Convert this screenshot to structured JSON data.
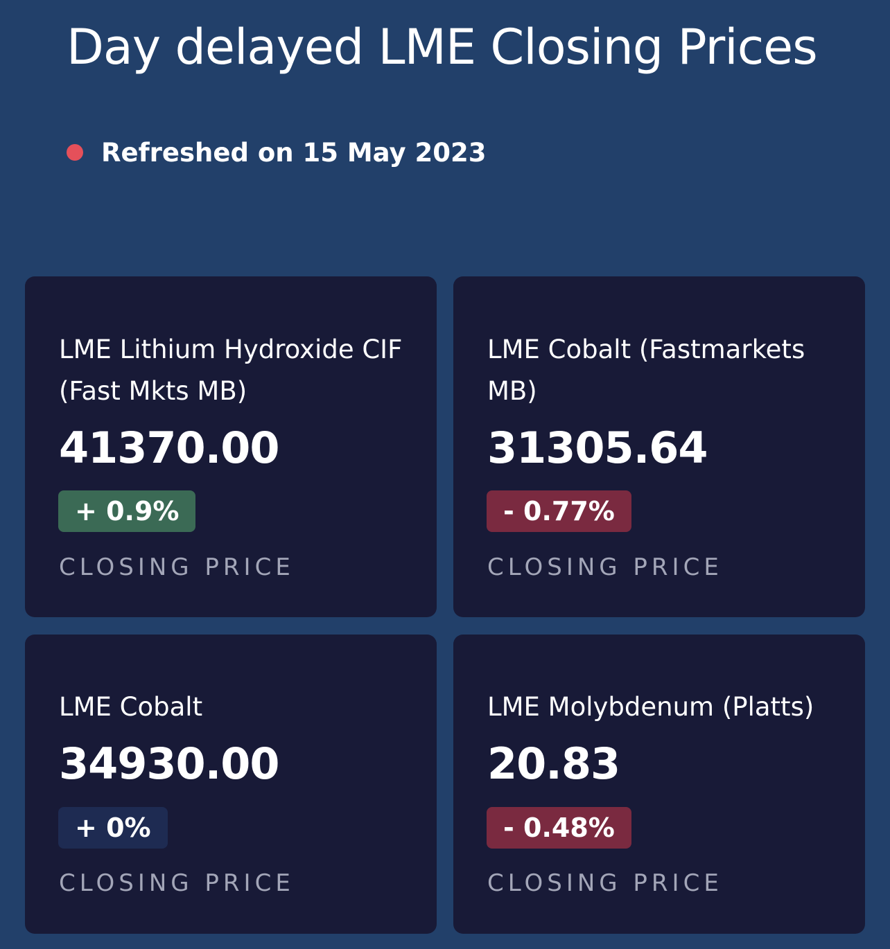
{
  "header": {
    "title": "Day delayed LME Closing Prices",
    "refreshed_text": "Refreshed on 15 May 2023"
  },
  "colors": {
    "background": "#22406a",
    "card_background": "#181a37",
    "status_dot": "#e5505a",
    "positive_change_bg": "#3b6a55",
    "negative_change_bg": "#7a2a40",
    "neutral_change_bg": "#1e2b52"
  },
  "cards": [
    {
      "name": "LME Lithium Hydroxide CIF (Fast Mkts MB)",
      "price": "41370.00",
      "change": "+ 0.9%",
      "direction": "up",
      "label": "CLOSING PRICE"
    },
    {
      "name": "LME Cobalt (Fastmarkets MB)",
      "price": "31305.64",
      "change": "- 0.77%",
      "direction": "down",
      "label": "CLOSING PRICE"
    },
    {
      "name": "LME Cobalt",
      "price": "34930.00",
      "change": "+ 0%",
      "direction": "flat",
      "label": "CLOSING PRICE"
    },
    {
      "name": "LME Molybdenum (Platts)",
      "price": "20.83",
      "change": "- 0.48%",
      "direction": "down",
      "label": "CLOSING PRICE"
    }
  ]
}
